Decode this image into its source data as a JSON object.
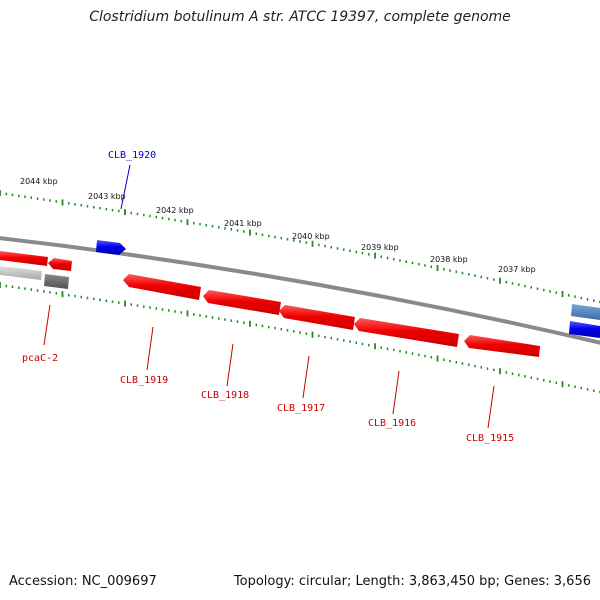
{
  "title": "Clostridium botulinum A str. ATCC 19397, complete genome",
  "footer": {
    "accession": "Accession: NC_009697",
    "topology": "Topology: circular; Length: 3,863,450 bp; Genes: 3,656"
  },
  "colors": {
    "forward_gene": "#0000ee",
    "reverse_gene": "#ee0000",
    "label_forward": "#0000cc",
    "label_reverse": "#cc0000",
    "tick": "#228822",
    "backbone": "#888888",
    "grey_gene": "#b8b8b8",
    "dark_grey_gene": "#606060",
    "steel_gene": "#4a80b8"
  },
  "scale": {
    "unit": "kbp",
    "labels": [
      "2044 kbp",
      "2043 kbp",
      "2042 kbp",
      "2041 kbp",
      "2040 kbp",
      "2039 kbp",
      "2038 kbp",
      "2037 kbp"
    ]
  },
  "genes": [
    {
      "name": "CLB_1920",
      "strand": "forward",
      "label_color": "label_forward"
    },
    {
      "name": "pcaC-2",
      "strand": "reverse",
      "label_color": "label_reverse"
    },
    {
      "name": "CLB_1919",
      "strand": "reverse",
      "label_color": "label_reverse"
    },
    {
      "name": "CLB_1918",
      "strand": "reverse",
      "label_color": "label_reverse"
    },
    {
      "name": "CLB_1917",
      "strand": "reverse",
      "label_color": "label_reverse"
    },
    {
      "name": "CLB_1916",
      "strand": "reverse",
      "label_color": "label_reverse"
    },
    {
      "name": "CLB_1915",
      "strand": "reverse",
      "label_color": "label_reverse"
    }
  ]
}
